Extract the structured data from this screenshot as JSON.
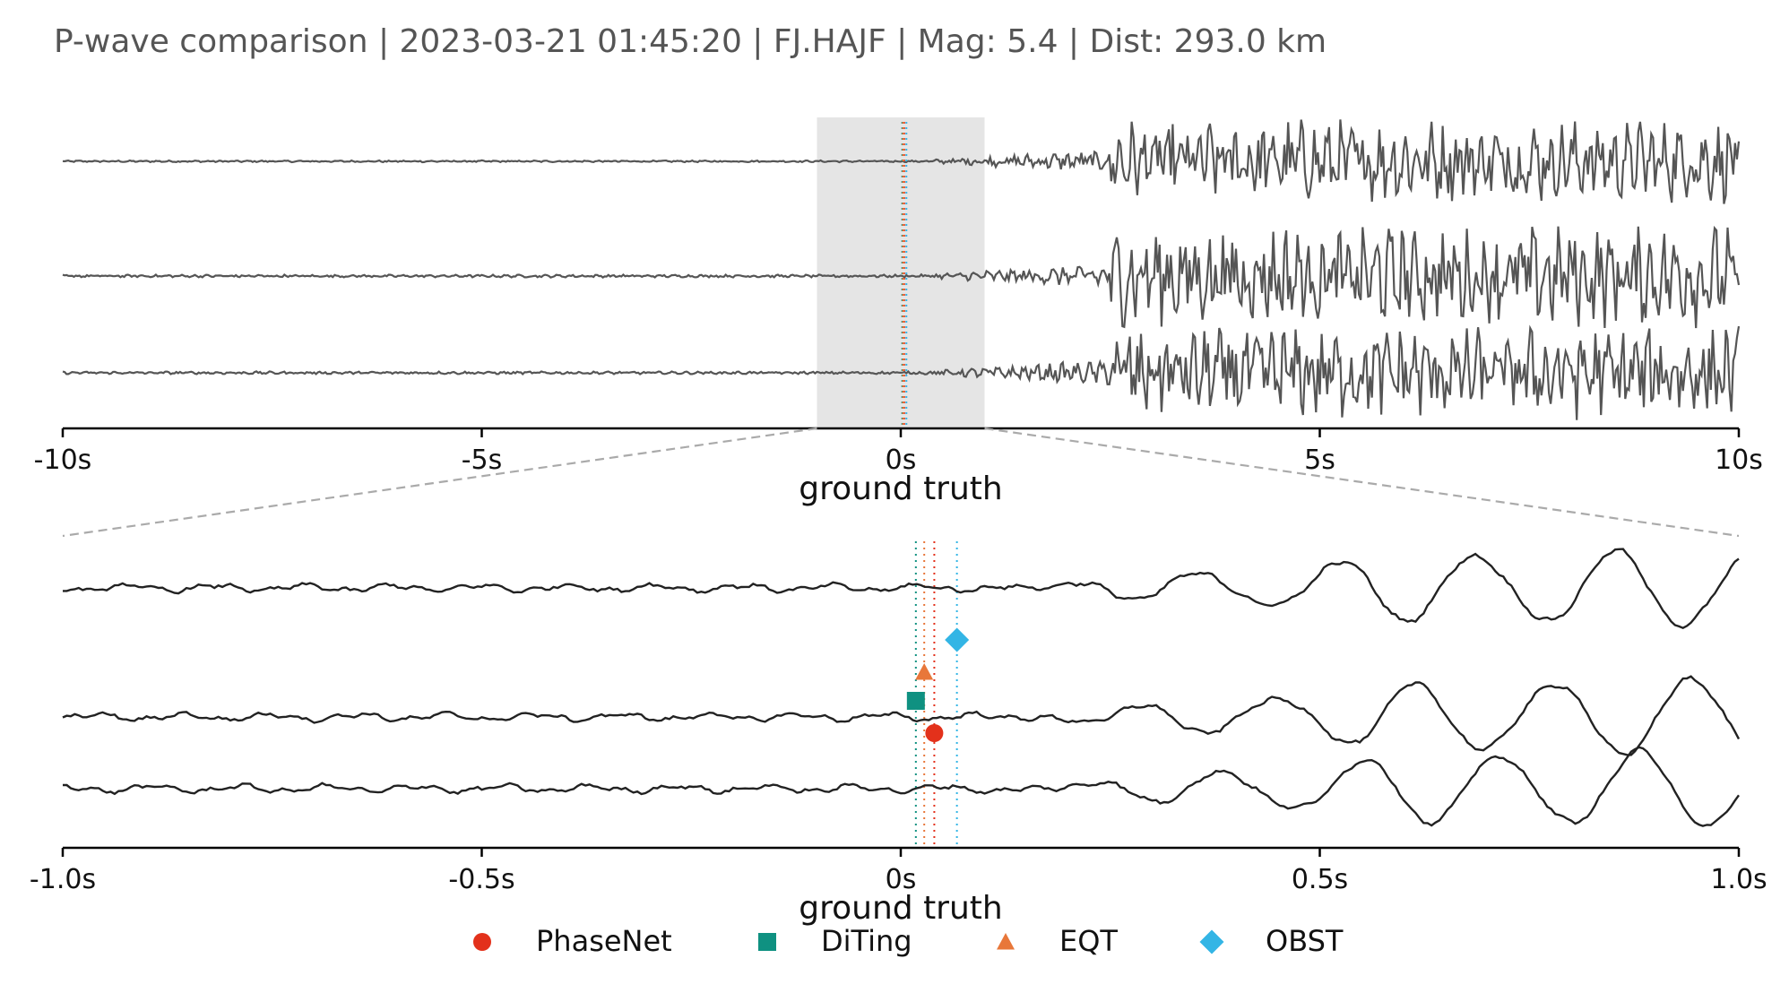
{
  "title": "P-wave comparison | 2023-03-21 01:45:20 | FJ.HAJF | Mag: 5.4 | Dist: 293.0 km",
  "colors": {
    "trace_top": "#555555",
    "trace_bottom": "#222222",
    "window": "#e5e5e5",
    "connector": "#aaaaaa",
    "PhaseNet": "#e3311b",
    "DiTing": "#0f9181",
    "EQT": "#e8773a",
    "OBST": "#33b5e5"
  },
  "chart_data": [
    {
      "type": "line",
      "panel": "overview",
      "xlabel": "ground truth",
      "x_range": [
        -10,
        10
      ],
      "x_ticks": [
        -10,
        -5,
        0,
        5,
        10
      ],
      "x_tick_labels": [
        "-10s",
        "-5s",
        "0s",
        "5s",
        "10s"
      ],
      "highlight_window": [
        -1.0,
        1.0
      ],
      "series": [
        {
          "channel": 1,
          "noise_amp": 0.02,
          "signal_amp": 0.9
        },
        {
          "channel": 2,
          "noise_amp": 0.03,
          "signal_amp": 1.1
        },
        {
          "channel": 3,
          "noise_amp": 0.03,
          "signal_amp": 1.0
        }
      ]
    },
    {
      "type": "line",
      "panel": "zoom",
      "xlabel": "ground truth",
      "x_range": [
        -1.0,
        1.0
      ],
      "x_ticks": [
        -1.0,
        -0.5,
        0,
        0.5,
        1.0
      ],
      "x_tick_labels": [
        "-1.0s",
        "-0.5s",
        "0s",
        "0.5s",
        "1.0s"
      ],
      "picks": [
        {
          "model": "PhaseNet",
          "time": 0.04,
          "marker": "circle"
        },
        {
          "model": "DiTing",
          "time": 0.018,
          "marker": "square"
        },
        {
          "model": "EQT",
          "time": 0.028,
          "marker": "triangle"
        },
        {
          "model": "OBST",
          "time": 0.067,
          "marker": "diamond"
        }
      ]
    }
  ],
  "legend": [
    {
      "label": "PhaseNet",
      "marker": "circle"
    },
    {
      "label": "DiTing",
      "marker": "square"
    },
    {
      "label": "EQT",
      "marker": "triangle"
    },
    {
      "label": "OBST",
      "marker": "diamond"
    }
  ]
}
